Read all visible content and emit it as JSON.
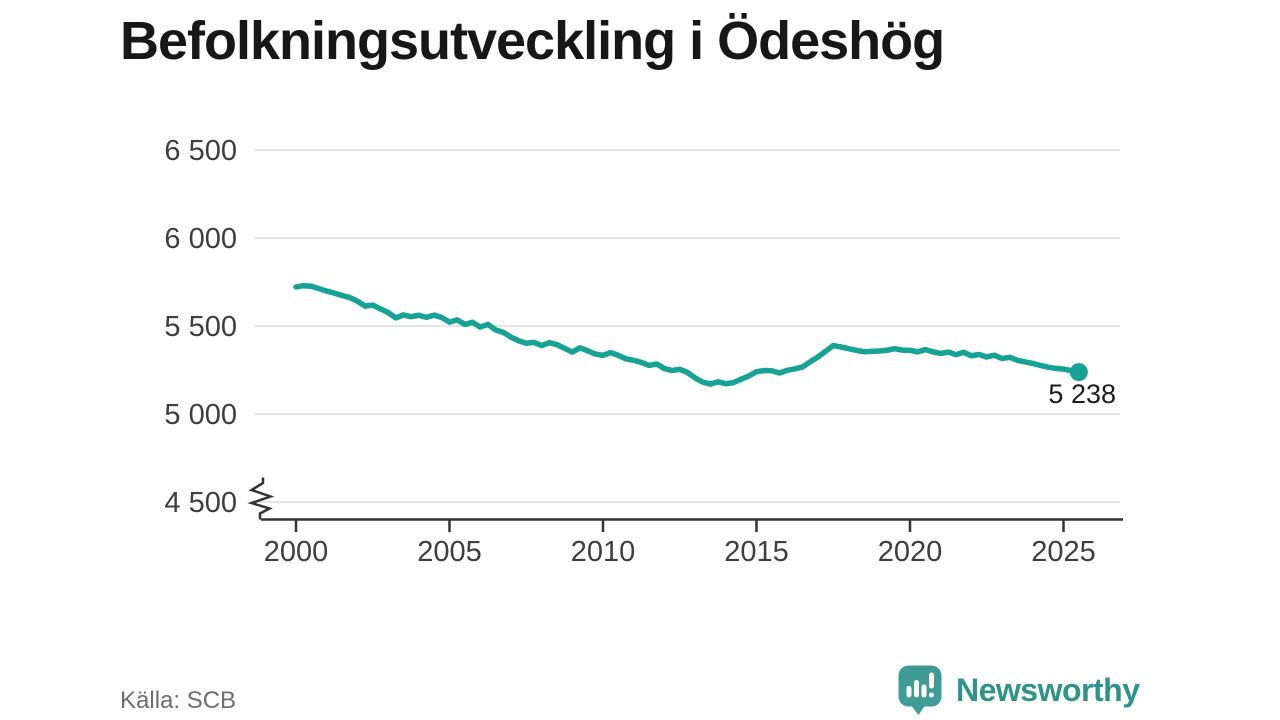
{
  "title": "Befolkningsutveckling i Ödeshög",
  "source": {
    "label": "Källa: SCB"
  },
  "branding": {
    "name": "Newsworthy"
  },
  "colors": {
    "line": "#17a296",
    "grid": "#e4e4e4",
    "axis": "#333333",
    "tick_label": "#3e3e3e",
    "title": "#171717",
    "end_label": "#1c1c1c",
    "source": "#6d6d6d",
    "logo_icon": "#3f9c94",
    "logo_text": "#2d938b"
  },
  "chart_data": {
    "type": "line",
    "title": "Befolkningsutveckling i Ödeshög",
    "xlabel": "",
    "ylabel": "",
    "xlim": [
      2000,
      2026.5
    ],
    "ylim": [
      4500,
      6500
    ],
    "axis_break_at_bottom": true,
    "grid": "horizontal",
    "legend_position": "none",
    "x_ticks": [
      2000,
      2005,
      2010,
      2015,
      2020,
      2025
    ],
    "y_ticks": [
      {
        "value": 6500,
        "label": "6 500"
      },
      {
        "value": 6000,
        "label": "6 000"
      },
      {
        "value": 5500,
        "label": "5 500"
      },
      {
        "value": 5000,
        "label": "5 000"
      },
      {
        "value": 4500,
        "label": "4 500"
      }
    ],
    "end_label": "5 238",
    "end_value": 5238,
    "series": [
      {
        "name": "Befolkning",
        "x": [
          2000,
          2000.25,
          2000.5,
          2000.75,
          2001,
          2001.25,
          2001.5,
          2001.75,
          2002,
          2002.25,
          2002.5,
          2002.75,
          2003,
          2003.25,
          2003.5,
          2003.75,
          2004,
          2004.25,
          2004.5,
          2004.75,
          2005,
          2005.25,
          2005.5,
          2005.75,
          2006,
          2006.25,
          2006.5,
          2006.75,
          2007,
          2007.25,
          2007.5,
          2007.75,
          2008,
          2008.25,
          2008.5,
          2008.75,
          2009,
          2009.25,
          2009.5,
          2009.75,
          2010,
          2010.25,
          2010.5,
          2010.75,
          2011,
          2011.25,
          2011.5,
          2011.75,
          2012,
          2012.25,
          2012.5,
          2012.75,
          2013,
          2013.25,
          2013.5,
          2013.75,
          2014,
          2014.25,
          2014.5,
          2014.75,
          2015,
          2015.25,
          2015.5,
          2015.75,
          2016,
          2016.25,
          2016.5,
          2016.75,
          2017,
          2017.25,
          2017.5,
          2017.75,
          2018,
          2018.25,
          2018.5,
          2018.75,
          2019,
          2019.25,
          2019.5,
          2019.75,
          2020,
          2020.25,
          2020.5,
          2020.75,
          2021,
          2021.25,
          2021.5,
          2021.75,
          2022,
          2022.25,
          2022.5,
          2022.75,
          2023,
          2023.25,
          2023.5,
          2023.75,
          2024,
          2024.25,
          2024.5,
          2024.75,
          2025,
          2025.25,
          2025.5
        ],
        "y": [
          5722,
          5729,
          5726,
          5712,
          5698,
          5687,
          5673,
          5662,
          5641,
          5613,
          5619,
          5597,
          5577,
          5546,
          5563,
          5553,
          5561,
          5549,
          5562,
          5548,
          5522,
          5535,
          5509,
          5521,
          5494,
          5509,
          5478,
          5464,
          5437,
          5416,
          5402,
          5407,
          5389,
          5405,
          5394,
          5373,
          5352,
          5376,
          5359,
          5341,
          5333,
          5349,
          5333,
          5313,
          5305,
          5293,
          5276,
          5284,
          5258,
          5247,
          5254,
          5236,
          5205,
          5181,
          5170,
          5183,
          5172,
          5178,
          5198,
          5216,
          5240,
          5247,
          5246,
          5233,
          5248,
          5257,
          5267,
          5297,
          5324,
          5356,
          5389,
          5381,
          5371,
          5362,
          5354,
          5356,
          5358,
          5362,
          5371,
          5363,
          5362,
          5353,
          5366,
          5353,
          5344,
          5352,
          5337,
          5351,
          5331,
          5338,
          5324,
          5334,
          5315,
          5322,
          5305,
          5296,
          5287,
          5276,
          5266,
          5259,
          5255,
          5247,
          5238
        ]
      }
    ]
  }
}
